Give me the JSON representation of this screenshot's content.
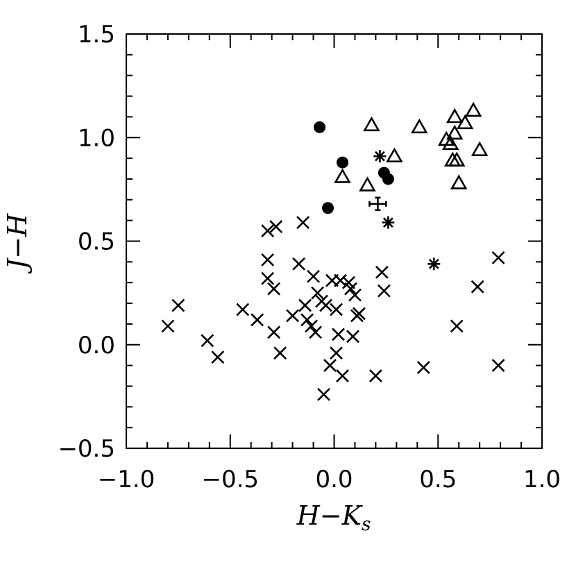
{
  "chart_data": {
    "type": "scatter",
    "title": "",
    "xlabel_parts": [
      "H",
      "−",
      "K",
      "s"
    ],
    "ylabel_parts": [
      "J",
      "−",
      "H"
    ],
    "xlim": [
      -1.0,
      1.0
    ],
    "ylim": [
      -0.5,
      1.5
    ],
    "xticks": [
      "−1.0",
      "−0.5",
      "0.0",
      "0.5",
      "1.0"
    ],
    "yticks": [
      "−0.5",
      "0.0",
      "0.5",
      "1.0",
      "1.5"
    ],
    "xtick_values": [
      -1.0,
      -0.5,
      0.0,
      0.5,
      1.0
    ],
    "ytick_values": [
      -0.5,
      0.0,
      0.5,
      1.0,
      1.5
    ],
    "grid": false,
    "series": [
      {
        "marker": "x",
        "points": [
          [
            -0.8,
            0.09
          ],
          [
            -0.75,
            0.19
          ],
          [
            -0.61,
            0.02
          ],
          [
            -0.56,
            -0.06
          ],
          [
            -0.44,
            0.17
          ],
          [
            -0.37,
            0.12
          ],
          [
            -0.32,
            0.55
          ],
          [
            -0.28,
            0.57
          ],
          [
            -0.32,
            0.41
          ],
          [
            -0.32,
            0.32
          ],
          [
            -0.29,
            0.27
          ],
          [
            -0.29,
            0.06
          ],
          [
            -0.26,
            -0.04
          ],
          [
            -0.2,
            0.14
          ],
          [
            -0.17,
            0.39
          ],
          [
            -0.15,
            0.59
          ],
          [
            -0.14,
            0.19
          ],
          [
            -0.13,
            0.12
          ],
          [
            -0.11,
            0.09
          ],
          [
            -0.1,
            0.33
          ],
          [
            -0.09,
            0.06
          ],
          [
            -0.08,
            0.25
          ],
          [
            -0.06,
            0.21
          ],
          [
            -0.04,
            0.19
          ],
          [
            -0.05,
            -0.24
          ],
          [
            -0.01,
            0.31
          ],
          [
            -0.02,
            -0.1
          ],
          [
            0.01,
            0.17
          ],
          [
            0.01,
            -0.04
          ],
          [
            0.02,
            0.05
          ],
          [
            0.03,
            0.31
          ],
          [
            0.04,
            -0.15
          ],
          [
            0.07,
            0.3
          ],
          [
            0.08,
            0.27
          ],
          [
            0.09,
            0.04
          ],
          [
            0.1,
            0.24
          ],
          [
            0.11,
            0.14
          ],
          [
            0.12,
            0.15
          ],
          [
            0.2,
            -0.15
          ],
          [
            0.23,
            0.35
          ],
          [
            0.24,
            0.26
          ],
          [
            0.43,
            -0.11
          ],
          [
            0.59,
            0.09
          ],
          [
            0.69,
            0.28
          ],
          [
            0.79,
            0.42
          ],
          [
            0.79,
            -0.1
          ]
        ]
      },
      {
        "marker": "triangle",
        "points": [
          [
            0.04,
            0.81
          ],
          [
            0.16,
            0.77
          ],
          [
            0.18,
            1.06
          ],
          [
            0.29,
            0.91
          ],
          [
            0.41,
            1.05
          ],
          [
            0.54,
            0.99
          ],
          [
            0.56,
            0.97
          ],
          [
            0.57,
            0.89
          ],
          [
            0.58,
            1.1
          ],
          [
            0.58,
            1.02
          ],
          [
            0.59,
            0.89
          ],
          [
            0.6,
            0.78
          ],
          [
            0.63,
            1.07
          ],
          [
            0.67,
            1.13
          ],
          [
            0.7,
            0.94
          ]
        ]
      },
      {
        "marker": "circle",
        "points": [
          [
            -0.07,
            1.05
          ],
          [
            0.04,
            0.88
          ],
          [
            -0.03,
            0.66
          ],
          [
            0.24,
            0.83
          ],
          [
            0.26,
            0.8
          ]
        ]
      },
      {
        "marker": "asterisk",
        "points": [
          [
            0.22,
            0.91
          ],
          [
            0.26,
            0.59
          ],
          [
            0.48,
            0.39
          ]
        ]
      }
    ],
    "error_bar": {
      "x": 0.21,
      "y": 0.68,
      "xerr": 0.04,
      "yerr": 0.03
    }
  }
}
